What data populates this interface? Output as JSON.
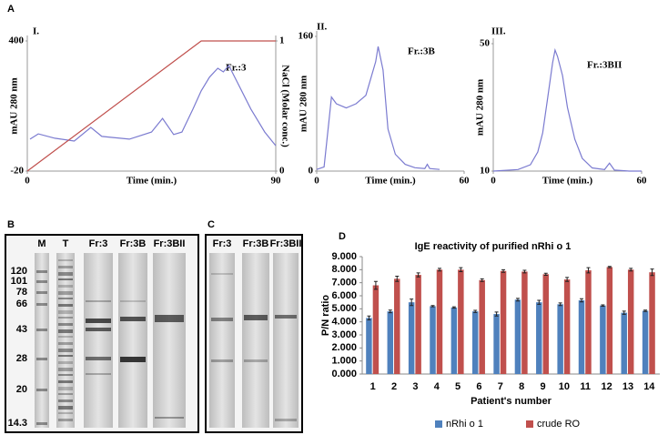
{
  "panel_labels": [
    "A",
    "B",
    "C",
    "D"
  ],
  "gels": {
    "B": {
      "lanes": [
        "M",
        "T",
        "Fr:3",
        "Fr:3B",
        "Fr:3BII"
      ],
      "markers": [
        "120",
        "101",
        "78",
        "66",
        "43",
        "28",
        "20",
        "14.3"
      ]
    },
    "C": {
      "lanes": [
        "Fr:3",
        "Fr:3B",
        "Fr:3BII"
      ]
    }
  },
  "chart_data": [
    {
      "type": "line",
      "title": "I.",
      "annotation": "Fr.:3",
      "xlabel": "Time (min.)",
      "ylabel": "mAU 280 nm",
      "y2label": "NaCl (Molar conc.)",
      "xlim": [
        0,
        90
      ],
      "xticks": [
        0,
        90
      ],
      "ylim": [
        -20,
        400
      ],
      "yticks": [
        -20,
        400
      ],
      "y2lim": [
        0,
        1
      ],
      "y2ticks": [
        0,
        1
      ],
      "series": [
        {
          "color": "#7b7bd0",
          "x": [
            1,
            4,
            10,
            17,
            23,
            27,
            37,
            45,
            49,
            53,
            56,
            60,
            63,
            66,
            69,
            71,
            73,
            76,
            81,
            86,
            90
          ],
          "values": [
            83,
            100,
            86,
            77,
            121,
            92,
            83,
            106,
            150,
            98,
            106,
            180,
            239,
            283,
            312,
            300,
            321,
            268,
            180,
            106,
            62
          ]
        },
        {
          "color": "#c0504d",
          "axis": "y2",
          "x": [
            0,
            63,
            90
          ],
          "values": [
            0,
            1,
            1
          ]
        }
      ]
    },
    {
      "type": "line",
      "title": "II.",
      "annotation": "Fr.:3B",
      "xlabel": "Time (min.)",
      "ylabel": "mAU 280 nm",
      "xlim": [
        0,
        60
      ],
      "xticks": [
        0,
        60
      ],
      "ylim": [
        0,
        160
      ],
      "yticks": [
        0,
        160
      ],
      "series": [
        {
          "color": "#7b7bd0",
          "x": [
            0,
            3,
            5,
            6,
            8,
            12,
            16,
            20,
            22,
            24,
            25,
            27,
            29,
            32,
            36,
            40,
            44,
            45,
            46,
            50
          ],
          "values": [
            2,
            5,
            60,
            88,
            80,
            75,
            80,
            90,
            110,
            130,
            148,
            120,
            50,
            20,
            8,
            4,
            3,
            8,
            3,
            2
          ]
        }
      ]
    },
    {
      "type": "line",
      "title": "III.",
      "annotation": "Fr.:3BII",
      "xlabel": "Time (min.)",
      "ylabel": "mAU 280 nm",
      "xlim": [
        0,
        60
      ],
      "xticks": [
        0,
        60
      ],
      "ylim": [
        10,
        50
      ],
      "yticks": [
        10,
        50
      ],
      "series": [
        {
          "color": "#7b7bd0",
          "x": [
            0,
            10,
            15,
            18,
            20,
            22,
            24,
            25,
            26,
            28,
            30,
            33,
            36,
            40,
            45,
            47,
            49,
            55,
            60
          ],
          "values": [
            10,
            10.5,
            12,
            16,
            22,
            33,
            44,
            48,
            46,
            40,
            30,
            20,
            14,
            11,
            10.5,
            12.5,
            10.3,
            10,
            10
          ]
        }
      ]
    },
    {
      "type": "bar",
      "title": "IgE reactivity of purified nRhi o 1",
      "xlabel": "Patient's number",
      "ylabel": "P/N ratio",
      "categories": [
        "1",
        "2",
        "3",
        "4",
        "5",
        "6",
        "7",
        "8",
        "9",
        "10",
        "11",
        "12",
        "13",
        "14"
      ],
      "ylim": [
        0,
        9
      ],
      "yticks": [
        {
          "value": 0,
          "label": "0.000"
        },
        {
          "value": 1,
          "label": "1.000"
        },
        {
          "value": 2,
          "label": "2.000"
        },
        {
          "value": 3,
          "label": "3.000"
        },
        {
          "value": 4,
          "label": "4.000"
        },
        {
          "value": 5,
          "label": "5.000"
        },
        {
          "value": 6,
          "label": "6.000"
        },
        {
          "value": 7,
          "label": "7.000"
        },
        {
          "value": 8,
          "label": "8.000"
        },
        {
          "value": 9,
          "label": "9.000"
        }
      ],
      "grid": false,
      "legend": "bottom",
      "series": [
        {
          "name": "nRhi o 1",
          "color": "#4f81bd",
          "values": [
            4.3,
            4.8,
            5.5,
            5.2,
            5.1,
            4.8,
            4.6,
            5.7,
            5.5,
            5.35,
            5.65,
            5.25,
            4.7,
            4.85
          ],
          "errors": [
            0.15,
            0.1,
            0.25,
            0.05,
            0.05,
            0.08,
            0.15,
            0.1,
            0.15,
            0.1,
            0.12,
            0.05,
            0.12,
            0.05
          ]
        },
        {
          "name": "crude RO",
          "color": "#c0504d",
          "values": [
            6.8,
            7.3,
            7.6,
            8.0,
            8.0,
            7.2,
            7.9,
            7.85,
            7.65,
            7.25,
            7.95,
            8.2,
            8.0,
            7.8
          ],
          "errors": [
            0.3,
            0.2,
            0.15,
            0.1,
            0.15,
            0.1,
            0.1,
            0.1,
            0.08,
            0.15,
            0.2,
            0.05,
            0.1,
            0.25
          ]
        }
      ]
    }
  ]
}
